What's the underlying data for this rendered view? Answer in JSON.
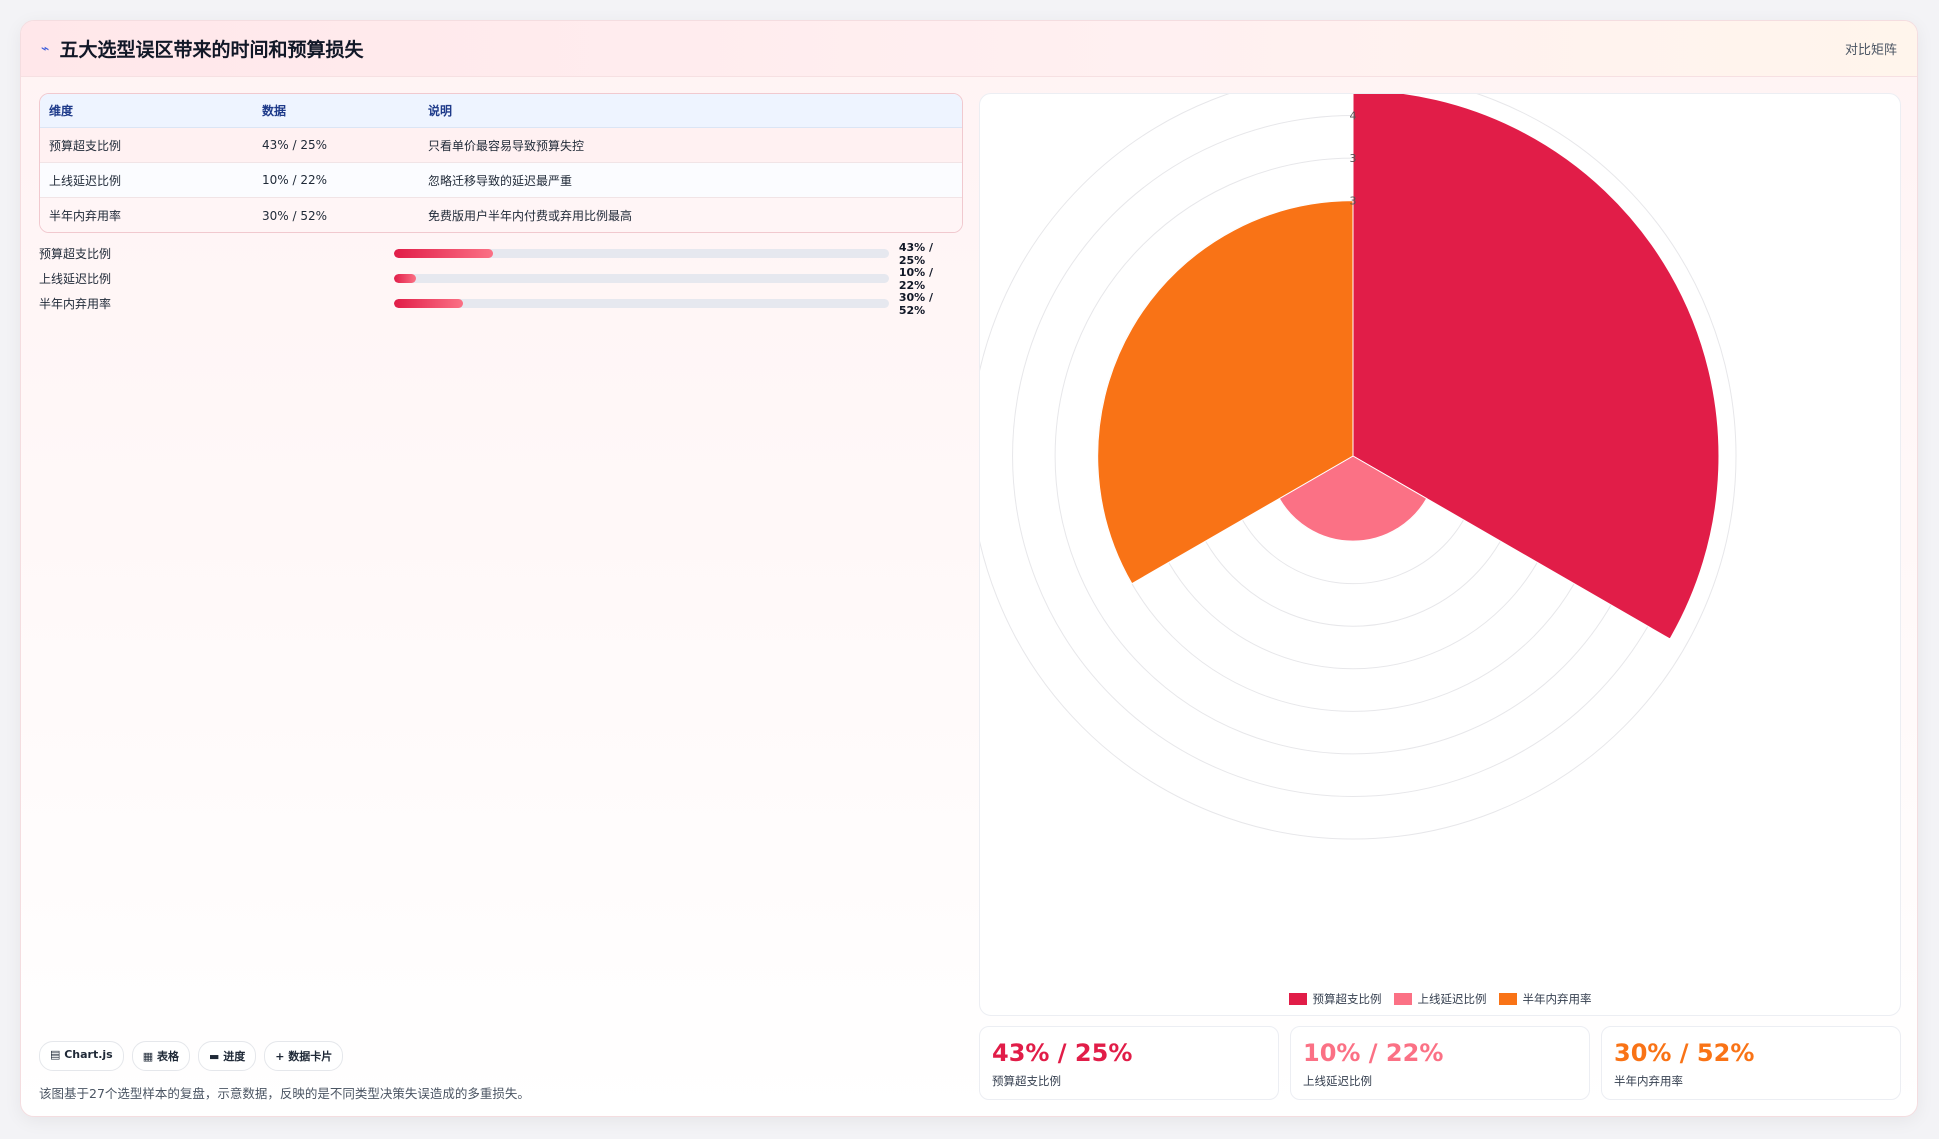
{
  "header": {
    "title": "五大选型误区带来的时间和预算损失",
    "right_label": "对比矩阵"
  },
  "table": {
    "columns": [
      "维度",
      "数据",
      "说明"
    ],
    "rows": [
      {
        "dimension": "预算超支比例",
        "data": "43% / 25%",
        "note": "只看单价最容易导致预算失控"
      },
      {
        "dimension": "上线延迟比例",
        "data": "10% / 22%",
        "note": "忽略迁移导致的延迟最严重"
      },
      {
        "dimension": "半年内弃用率",
        "data": "30% / 52%",
        "note": "免费版用户半年内付费或弃用比例最高"
      }
    ]
  },
  "progress": [
    {
      "label": "预算超支比例",
      "value_text": "43% / 25%",
      "fraction": 0.2
    },
    {
      "label": "上线延迟比例",
      "value_text": "10% / 22%",
      "fraction": 0.045
    },
    {
      "label": "半年内弃用率",
      "value_text": "30% / 52%",
      "fraction": 0.14
    }
  ],
  "chips": [
    "▤ Chart.js",
    "▦ 表格",
    "▬ 进度",
    "+ 数据卡片"
  ],
  "footnote": "该图基于27个选型样本的复盘，示意数据，反映的是不同类型决策失误造成的多重损失。",
  "stats": [
    {
      "big": "43% / 25%",
      "label": "预算超支比例",
      "color": "#e11d48"
    },
    {
      "big": "10% / 22%",
      "label": "上线延迟比例",
      "color": "#fb7185"
    },
    {
      "big": "30% / 52%",
      "label": "半年内弃用率",
      "color": "#f97316"
    }
  ],
  "chart_data": {
    "type": "polarArea",
    "categories": [
      "预算超支比例",
      "上线延迟比例",
      "半年内弃用率"
    ],
    "values": [
      43,
      10,
      30
    ],
    "colors": [
      "#e11d48",
      "#fb7185",
      "#f97316"
    ],
    "rmax": 45,
    "ticks": [
      5,
      10,
      15,
      20,
      25,
      30,
      35,
      40,
      45
    ],
    "tick_labels_shown": [
      "45",
      "4",
      "3",
      "3"
    ],
    "legend_position": "bottom",
    "grid": true
  }
}
